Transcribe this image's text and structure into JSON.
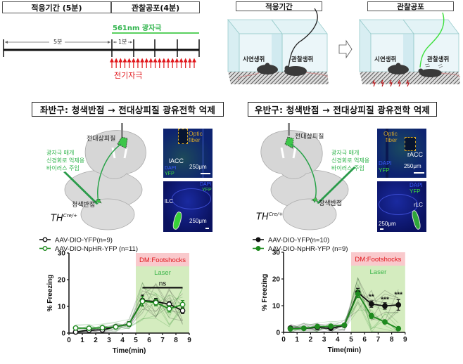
{
  "timeline": {
    "phase1_label": "적응기간 (5분)",
    "phase2_label": "관찰공포(4분)",
    "laser_label": "561nm 광자극",
    "five_min_label": "5분",
    "one_min_label": "1분",
    "shock_label": "전기자극",
    "colors": {
      "laser": "#22c02a",
      "shock": "#e0161b",
      "axis": "#111111"
    }
  },
  "setup": {
    "left_panel_title": "적응기간",
    "right_panel_title": "관찰공포",
    "demonstrator_label": "시연생쥐",
    "observer_label": "관찰생쥐",
    "arrow": "→"
  },
  "left_hemisphere": {
    "title": "좌반구: 청색반점 → 전대상피질 광유전학 억제",
    "acc_label": "전대상피질",
    "lc_label": "청색반점",
    "virus_label_lines": [
      "광자극 매개",
      "신경회로 억제용",
      "바이러스 주입"
    ],
    "genotype": "TH",
    "genotype_sup": "Cre/+",
    "micro_top": {
      "region": "lACC",
      "fiber_label_1": "Optic",
      "fiber_label_2": "fiber",
      "dapi": "DAPI",
      "yfp": "YFP",
      "scale": "250μm"
    },
    "micro_bottom": {
      "region": "lLC",
      "dapi": "DAPI",
      "yfp": "YFP",
      "scale": "250μm"
    }
  },
  "right_hemisphere": {
    "title": "우반구: 청색반점 → 전대상피질 광유전학 억제",
    "acc_label": "전대상피질",
    "lc_label": "청색반점",
    "virus_label_lines": [
      "광자극 매개",
      "신경회로 억제용",
      "바이러스 주입"
    ],
    "genotype": "TH",
    "genotype_sup": "Cre/+",
    "micro_top": {
      "region": "rACC",
      "fiber_label_1": "Optic",
      "fiber_label_2": "fiber",
      "dapi": "DAPI",
      "yfp": "YFP",
      "scale": "250μm"
    },
    "micro_bottom": {
      "region": "rLC",
      "dapi": "DAPI",
      "yfp": "YFP",
      "scale": "250μm"
    }
  },
  "chart_data": [
    {
      "type": "line",
      "title": "",
      "xlabel": "Time(min)",
      "ylabel": "% Freezing",
      "xlim": [
        0,
        9
      ],
      "ylim": [
        0,
        30
      ],
      "xticks": [
        0,
        1,
        2,
        3,
        4,
        5,
        6,
        7,
        8,
        9
      ],
      "yticks": [
        0,
        10,
        20,
        30
      ],
      "x": [
        0.5,
        1.5,
        2.5,
        3.5,
        4.5,
        5.5,
        6.5,
        7.5,
        8.5
      ],
      "shaded_regions": [
        {
          "label": "DM:Footshocks",
          "x_from": 5,
          "x_to": 9,
          "y_from": 25,
          "y_to": 30,
          "color": "#f9c9cc",
          "text_color": "#e0161b"
        },
        {
          "label": "Laser",
          "x_from": 5,
          "x_to": 9,
          "y_from": 0,
          "y_to": 25,
          "color": "#d4ecbf",
          "text_color": "#3cb54a"
        }
      ],
      "annotations": [
        {
          "text": "ns",
          "x_from": 5.5,
          "x_to": 8.5,
          "y": 17
        }
      ],
      "legend": [
        {
          "label": "AAV-DIO-YFP(n=9)",
          "marker": "open-circle",
          "color": "#111111"
        },
        {
          "label": "AAV-DIO-NpHR-YFP (n=11)",
          "marker": "open-circle",
          "color": "#1e8a1e"
        }
      ],
      "series": [
        {
          "name": "AAV-DIO-YFP(n=9)",
          "values": [
            0.4,
            1.1,
            1.2,
            2.4,
            3.4,
            12.2,
            11.8,
            10.8,
            8.4
          ],
          "sem": [
            0.4,
            0.4,
            0.4,
            0.5,
            0.9,
            2.0,
            1.2,
            1.0,
            1.1
          ],
          "color": "#111111"
        },
        {
          "name": "AAV-DIO-NpHR-YFP (n=11)",
          "values": [
            1.9,
            1.8,
            2.0,
            2.3,
            3.4,
            11.9,
            11.4,
            9.1,
            10.7
          ],
          "sem": [
            0.4,
            0.3,
            0.4,
            0.4,
            0.8,
            1.8,
            1.2,
            1.2,
            1.5
          ],
          "color": "#1e8a1e"
        }
      ]
    },
    {
      "type": "line",
      "title": "",
      "xlabel": "Time(min)",
      "ylabel": "% Freezing",
      "xlim": [
        0,
        9
      ],
      "ylim": [
        0,
        30
      ],
      "xticks": [
        0,
        1,
        2,
        3,
        4,
        5,
        6,
        7,
        8,
        9
      ],
      "yticks": [
        0,
        10,
        20,
        30
      ],
      "x": [
        0.5,
        1.5,
        2.5,
        3.5,
        4.5,
        5.5,
        6.5,
        7.5,
        8.5
      ],
      "shaded_regions": [
        {
          "label": "DM:Footshocks",
          "x_from": 5,
          "x_to": 9,
          "y_from": 25,
          "y_to": 30,
          "color": "#f9c9cc",
          "text_color": "#e0161b"
        },
        {
          "label": "Laser",
          "x_from": 5,
          "x_to": 9,
          "y_from": 0,
          "y_to": 25,
          "color": "#d4ecbf",
          "text_color": "#3cb54a"
        }
      ],
      "annotations": [
        {
          "text": "**",
          "x": 6.5,
          "y": 12.5
        },
        {
          "text": "***",
          "x": 7.5,
          "y": 11.5
        },
        {
          "text": "***",
          "x": 8.5,
          "y": 13.3
        }
      ],
      "legend": [
        {
          "label": "AAV-DIO-YFP(n=10)",
          "marker": "filled-circle",
          "color": "#111111"
        },
        {
          "label": "AAV-DIO-NpHR-YFP (n=9)",
          "marker": "filled-circle",
          "color": "#1e8a1e"
        }
      ],
      "series": [
        {
          "name": "AAV-DIO-YFP(n=10)",
          "values": [
            1.6,
            1.5,
            1.8,
            1.5,
            2.6,
            15.0,
            10.6,
            9.9,
            10.3
          ],
          "sem": [
            0.3,
            0.3,
            0.4,
            0.4,
            0.5,
            1.5,
            1.2,
            1.2,
            2.0
          ],
          "color": "#111111"
        },
        {
          "name": "AAV-DIO-NpHR-YFP (n=9)",
          "values": [
            1.3,
            1.5,
            2.2,
            2.3,
            2.7,
            14.4,
            6.2,
            3.9,
            1.4
          ],
          "sem": [
            0.3,
            0.3,
            0.4,
            0.4,
            0.6,
            1.4,
            1.0,
            0.5,
            0.3
          ],
          "color": "#1e8a1e"
        }
      ]
    }
  ]
}
